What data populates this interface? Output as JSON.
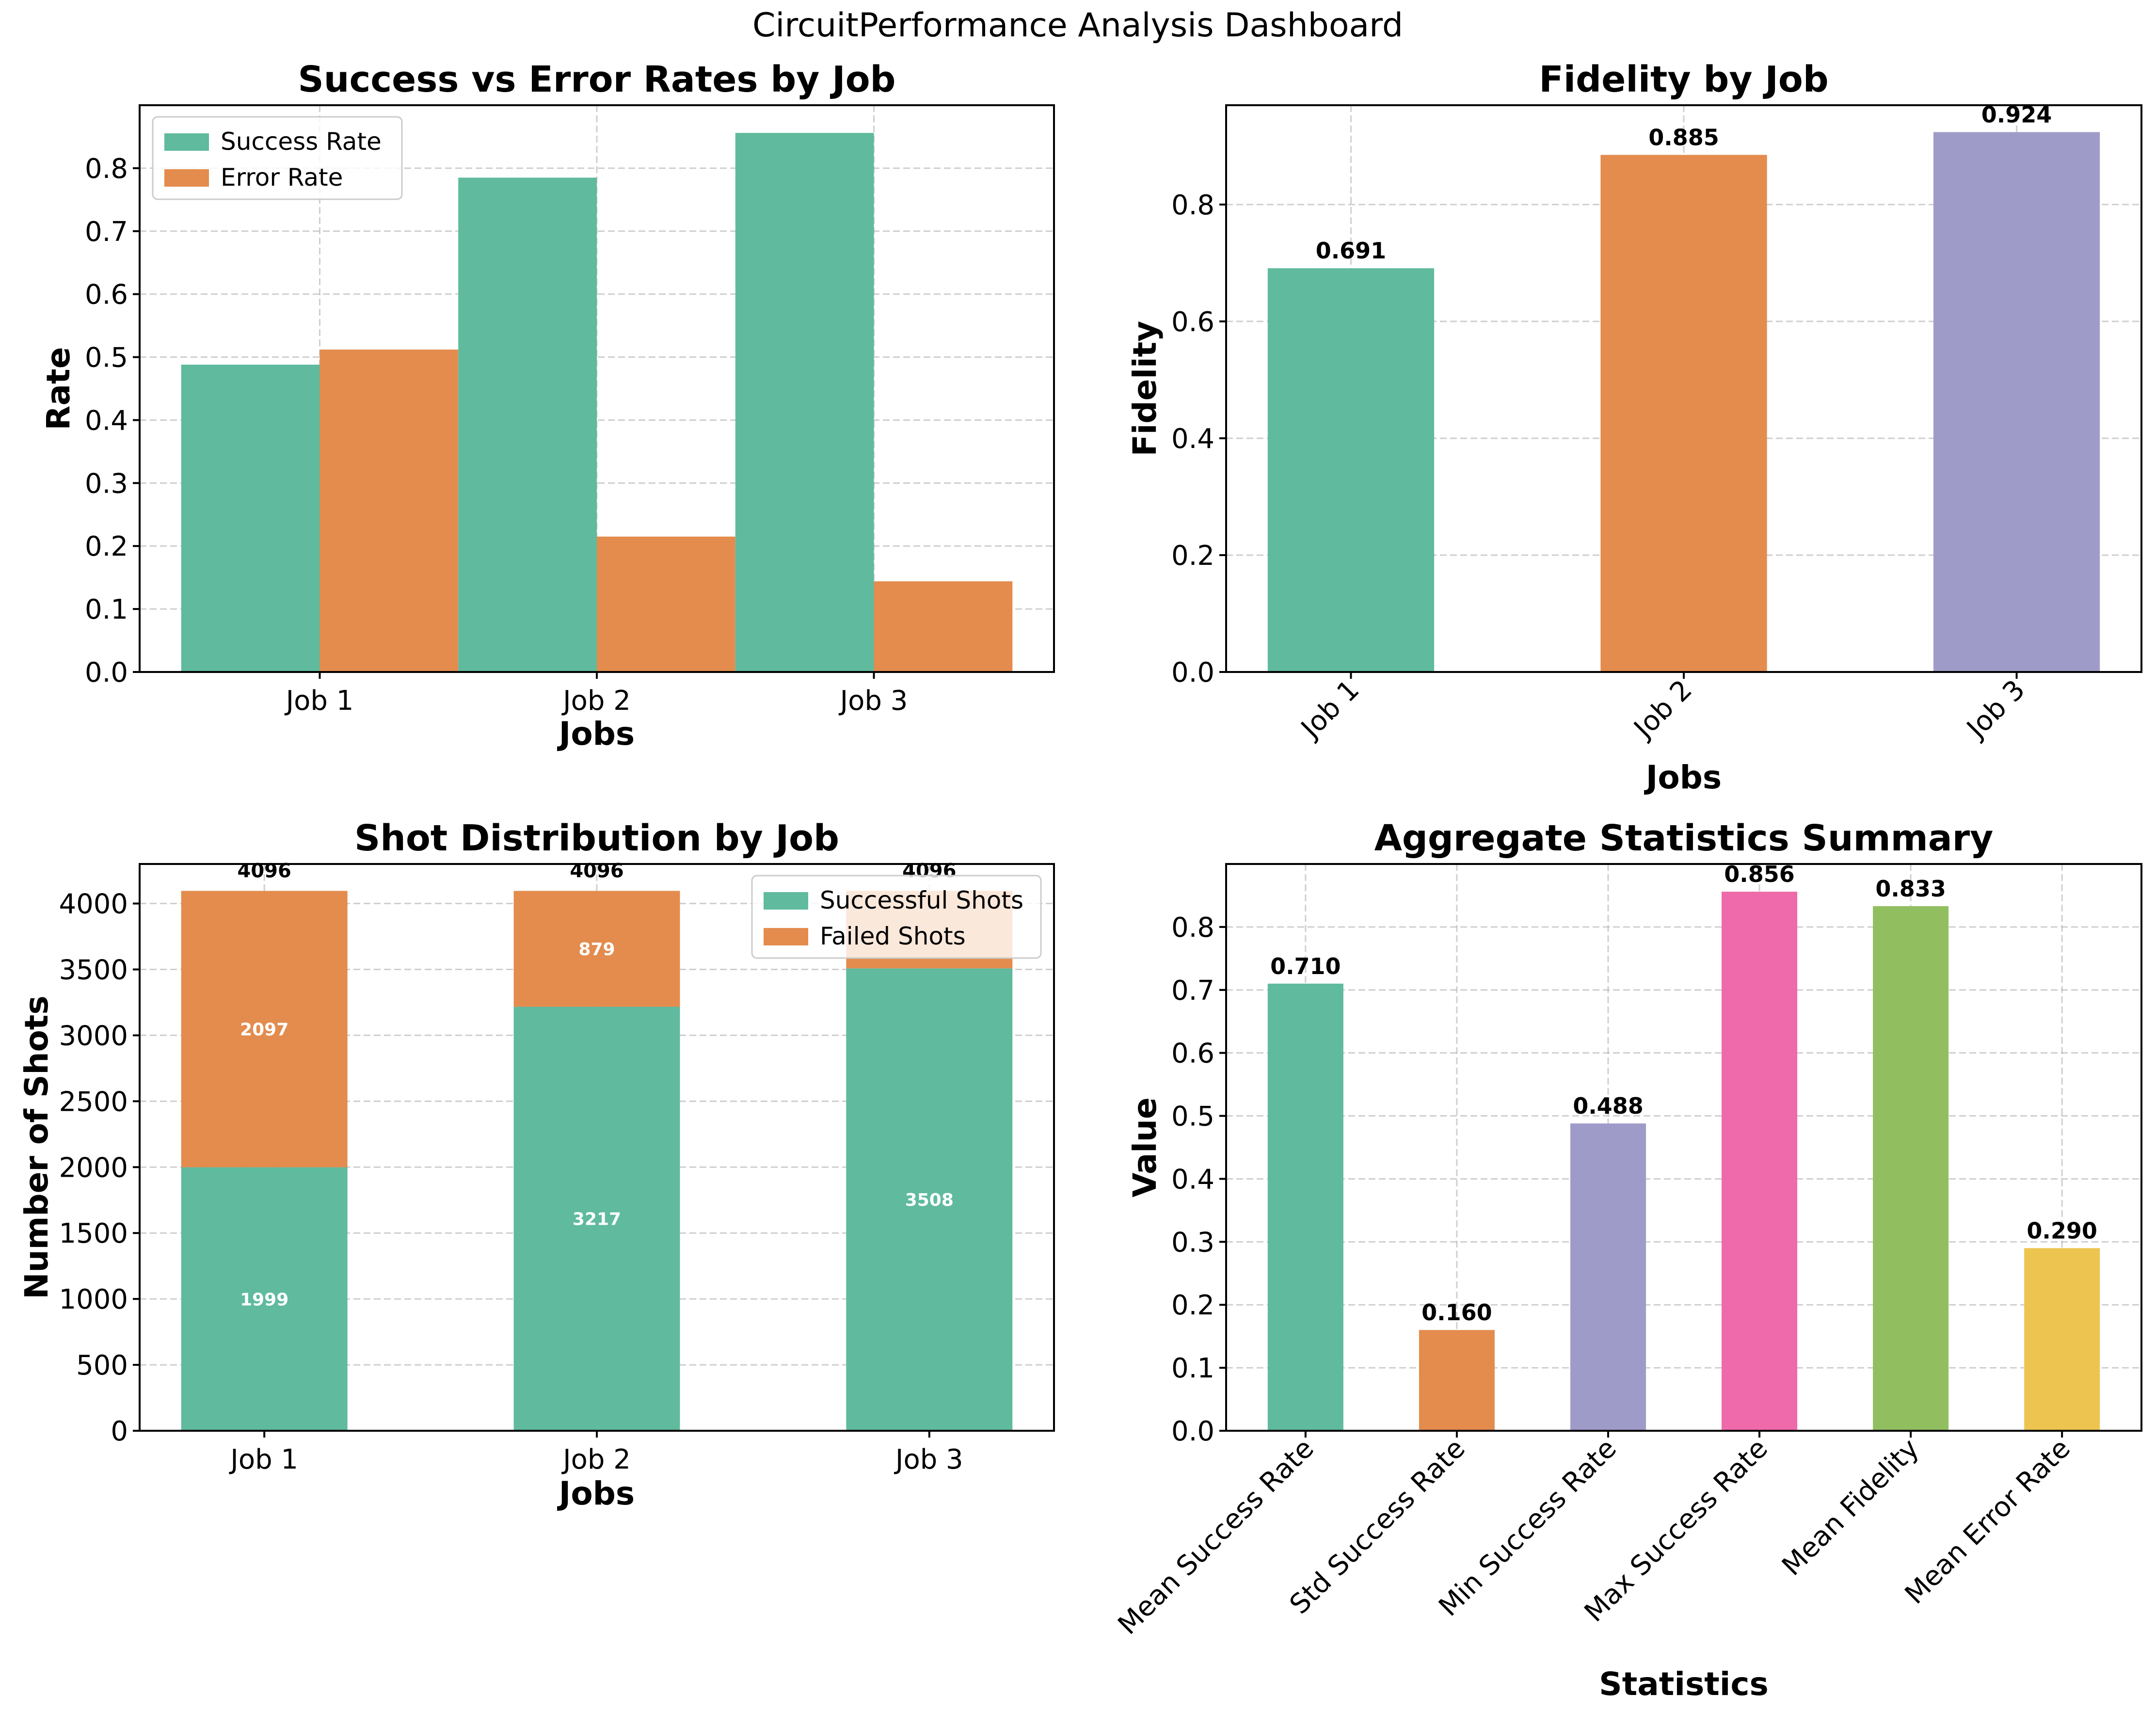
{
  "suptitle": "CircuitPerformance Analysis Dashboard",
  "chart_data": [
    {
      "type": "bar",
      "title": "Success vs Error Rates by Job",
      "xlabel": "Jobs",
      "ylabel": "Rate",
      "categories": [
        "Job 1",
        "Job 2",
        "Job 3"
      ],
      "series": [
        {
          "name": "Success Rate",
          "values": [
            0.488,
            0.785,
            0.856
          ],
          "color": "#5fba9e"
        },
        {
          "name": "Error Rate",
          "values": [
            0.512,
            0.215,
            0.144
          ],
          "color": "#e38c4e"
        }
      ],
      "ylim": [
        0,
        0.9
      ],
      "yticks": [
        "0.0",
        "0.1",
        "0.2",
        "0.3",
        "0.4",
        "0.5",
        "0.6",
        "0.7",
        "0.8"
      ],
      "legend": "top-left",
      "grid": true
    },
    {
      "type": "bar",
      "title": "Fidelity by Job",
      "xlabel": "Jobs",
      "ylabel": "Fidelity",
      "categories": [
        "Job 1",
        "Job 2",
        "Job 3"
      ],
      "values": [
        0.691,
        0.885,
        0.924
      ],
      "value_labels": [
        "0.691",
        "0.885",
        "0.924"
      ],
      "colors": [
        "#5fba9e",
        "#e38c4e",
        "#9f9bc9"
      ],
      "ylim": [
        0,
        0.97
      ],
      "yticks": [
        "0.0",
        "0.2",
        "0.4",
        "0.6",
        "0.8"
      ],
      "xtick_rotation": 45,
      "grid": true
    },
    {
      "type": "bar",
      "stacked": true,
      "title": "Shot Distribution by Job",
      "xlabel": "Jobs",
      "ylabel": "Number of Shots",
      "categories": [
        "Job 1",
        "Job 2",
        "Job 3"
      ],
      "series": [
        {
          "name": "Successful Shots",
          "values": [
            1999,
            3217,
            3508
          ],
          "labels": [
            "1999",
            "3217",
            "3508"
          ],
          "color": "#5fba9e"
        },
        {
          "name": "Failed Shots",
          "values": [
            2097,
            879,
            588
          ],
          "labels": [
            "2097",
            "879",
            ""
          ],
          "color": "#e38c4e"
        }
      ],
      "totals": [
        "4096",
        "4096",
        "4096"
      ],
      "ylim": [
        0,
        4300
      ],
      "yticks": [
        "0",
        "500",
        "1000",
        "1500",
        "2000",
        "2500",
        "3000",
        "3500",
        "4000"
      ],
      "legend": "top-right",
      "grid": true
    },
    {
      "type": "bar",
      "title": "Aggregate Statistics Summary",
      "xlabel": "Statistics",
      "ylabel": "Value",
      "categories": [
        "Mean Success Rate",
        "Std Success Rate",
        "Min Success Rate",
        "Max Success Rate",
        "Mean Fidelity",
        "Mean Error Rate"
      ],
      "values": [
        0.71,
        0.16,
        0.488,
        0.856,
        0.833,
        0.29
      ],
      "value_labels": [
        "0.710",
        "0.160",
        "0.488",
        "0.856",
        "0.833",
        "0.290"
      ],
      "colors": [
        "#5fba9e",
        "#e38c4e",
        "#9f9bc9",
        "#ee6aaa",
        "#91bf5f",
        "#ecc44f"
      ],
      "ylim": [
        0,
        0.9
      ],
      "yticks": [
        "0.0",
        "0.1",
        "0.2",
        "0.3",
        "0.4",
        "0.5",
        "0.6",
        "0.7",
        "0.8"
      ],
      "xtick_rotation": 45,
      "grid": true
    }
  ]
}
